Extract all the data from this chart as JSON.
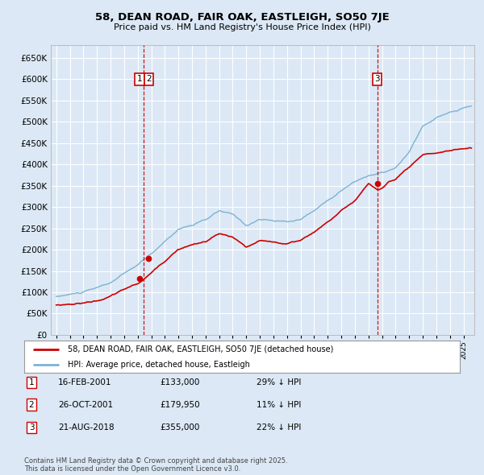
{
  "title": "58, DEAN ROAD, FAIR OAK, EASTLEIGH, SO50 7JE",
  "subtitle": "Price paid vs. HM Land Registry's House Price Index (HPI)",
  "ylim": [
    0,
    680000
  ],
  "yticks": [
    0,
    50000,
    100000,
    150000,
    200000,
    250000,
    300000,
    350000,
    400000,
    450000,
    500000,
    550000,
    600000,
    650000
  ],
  "xlim_start": 1994.6,
  "xlim_end": 2025.8,
  "bg_color": "#dce8f5",
  "plot_bg_color": "#dce8f5",
  "grid_color": "#ffffff",
  "hpi_color": "#7ab3d4",
  "price_color": "#cc0000",
  "vline_color": "#cc0000",
  "transactions": [
    {
      "date": 2001.12,
      "price": 133000,
      "label": "1"
    },
    {
      "date": 2001.82,
      "price": 179950,
      "label": "2"
    },
    {
      "date": 2018.64,
      "price": 355000,
      "label": "3"
    }
  ],
  "vline_dates": [
    2001.45,
    2018.64
  ],
  "label_positions": [
    {
      "date": 2001.12,
      "label": "1"
    },
    {
      "date": 2001.82,
      "label": "2"
    },
    {
      "date": 2018.64,
      "label": "3"
    }
  ],
  "legend_entries": [
    "58, DEAN ROAD, FAIR OAK, EASTLEIGH, SO50 7JE (detached house)",
    "HPI: Average price, detached house, Eastleigh"
  ],
  "table_data": [
    [
      "1",
      "16-FEB-2001",
      "£133,000",
      "29% ↓ HPI"
    ],
    [
      "2",
      "26-OCT-2001",
      "£179,950",
      "11% ↓ HPI"
    ],
    [
      "3",
      "21-AUG-2018",
      "£355,000",
      "22% ↓ HPI"
    ]
  ],
  "footnote": "Contains HM Land Registry data © Crown copyright and database right 2025.\nThis data is licensed under the Open Government Licence v3.0."
}
